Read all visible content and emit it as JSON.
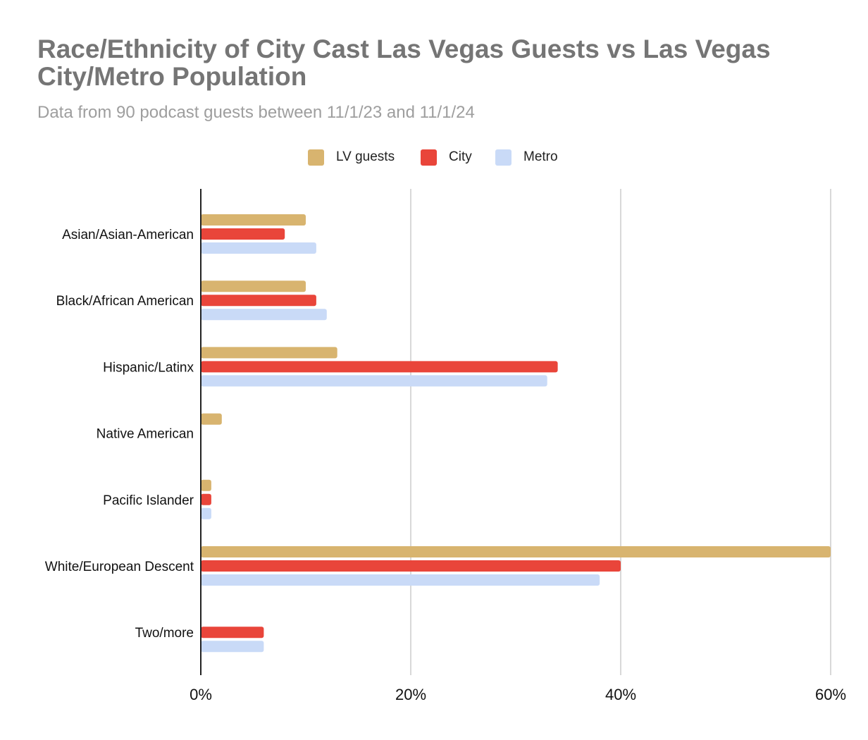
{
  "chart_data": {
    "type": "bar",
    "orientation": "horizontal",
    "title": "Race/Ethnicity of City Cast Las Vegas Guests vs Las Vegas City/Metro Population",
    "subtitle": "Data from 90 podcast guests between 11/1/23 and 11/1/24",
    "xlabel": "",
    "ylabel": "",
    "xlim": [
      0,
      60
    ],
    "x_ticks": [
      0,
      20,
      40,
      60
    ],
    "x_tick_labels": [
      "0%",
      "20%",
      "40%",
      "60%"
    ],
    "grid": true,
    "legend_position": "top-center",
    "categories": [
      "Asian/Asian-American",
      "Black/African American",
      "Hispanic/Latinx",
      "Native American",
      "Pacific Islander",
      "White/European Descent",
      "Two/more"
    ],
    "series": [
      {
        "name": "LV guests",
        "color": "#d8b46f",
        "values": [
          10,
          10,
          13,
          2,
          1,
          60,
          0
        ]
      },
      {
        "name": "City",
        "color": "#e9453a",
        "values": [
          8,
          11,
          34,
          0,
          1,
          40,
          6
        ]
      },
      {
        "name": "Metro",
        "color": "#c9daf7",
        "values": [
          11,
          12,
          33,
          0,
          1,
          38,
          6
        ]
      }
    ]
  }
}
